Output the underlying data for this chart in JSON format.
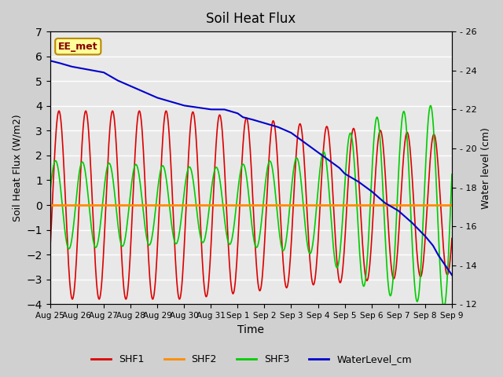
{
  "title": "Soil Heat Flux",
  "xlabel": "Time",
  "ylabel_left": "Soil Heat Flux (W/m2)",
  "ylabel_right": "Water level (cm)",
  "annotation": "EE_met",
  "ylim_left": [
    -4.0,
    7.0
  ],
  "ylim_right": [
    12,
    26
  ],
  "yticks_left": [
    -4.0,
    -3.0,
    -2.0,
    -1.0,
    0.0,
    1.0,
    2.0,
    3.0,
    4.0,
    5.0,
    6.0,
    7.0
  ],
  "yticks_right": [
    12,
    14,
    16,
    18,
    20,
    22,
    24,
    26
  ],
  "xtick_labels": [
    "Aug 25",
    "Aug 26",
    "Aug 27",
    "Aug 28",
    "Aug 29",
    "Aug 30",
    "Aug 31",
    "Sep 1",
    "Sep 2",
    "Sep 3",
    "Sep 4",
    "Sep 5",
    "Sep 6",
    "Sep 7",
    "Sep 8",
    "Sep 9"
  ],
  "n_days": 15,
  "colors": {
    "SHF1": "#dd0000",
    "SHF2": "#ff8c00",
    "SHF3": "#00cc00",
    "WaterLevel": "#0000cc",
    "background": "#e8e8e8",
    "grid": "#ffffff",
    "annotation_bg": "#ffff99",
    "annotation_border": "#bb8800",
    "annotation_text": "#880000"
  },
  "legend_labels": [
    "SHF1",
    "SHF2",
    "SHF3",
    "WaterLevel_cm"
  ],
  "background_color": "#e8e8e8",
  "fig_facecolor": "#d0d0d0"
}
